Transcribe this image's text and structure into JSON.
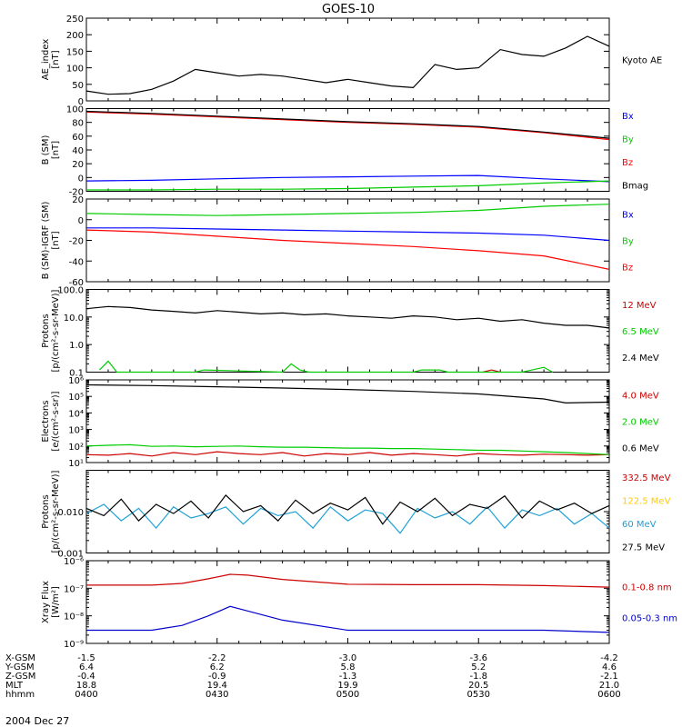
{
  "title": "GOES-10",
  "date_label": "2004 Dec 27",
  "chart_data": [
    {
      "type": "line",
      "ylabel": [
        "AE_index",
        "[nT]"
      ],
      "ylim": [
        0,
        250
      ],
      "yscale": "linear",
      "yticks": [
        0,
        50,
        100,
        150,
        200,
        250
      ],
      "ytick_labels": [
        "0",
        "50",
        "100",
        "150",
        "200",
        "250"
      ],
      "legend_position": "right",
      "series": [
        {
          "name": "Kyoto AE",
          "color": "#000000",
          "x_hhmm": [
            "0400",
            "0405",
            "0410",
            "0415",
            "0420",
            "0425",
            "0430",
            "0435",
            "0440",
            "0445",
            "0450",
            "0455",
            "0500",
            "0505",
            "0510",
            "0515",
            "0520",
            "0525",
            "0530",
            "0535",
            "0540",
            "0545",
            "0550",
            "0555",
            "0600"
          ],
          "values": [
            30,
            20,
            22,
            35,
            60,
            95,
            85,
            75,
            80,
            75,
            65,
            55,
            65,
            55,
            45,
            40,
            110,
            95,
            100,
            155,
            140,
            135,
            160,
            195,
            165
          ]
        }
      ]
    },
    {
      "type": "line",
      "ylabel": [
        "B (SM)",
        "[nT]"
      ],
      "ylim": [
        -20,
        100
      ],
      "yscale": "linear",
      "yticks": [
        -20,
        0,
        20,
        40,
        60,
        80,
        100
      ],
      "ytick_labels": [
        "-20",
        "0",
        "20",
        "40",
        "60",
        "80",
        "100"
      ],
      "legend_position": "right",
      "series": [
        {
          "name": "Bx",
          "color": "#0000ff",
          "x_hhmm": [
            "0400",
            "0415",
            "0430",
            "0445",
            "0500",
            "0515",
            "0530",
            "0545",
            "0600"
          ],
          "values": [
            -5,
            -4,
            -2,
            0,
            1,
            2,
            3,
            -2,
            -6
          ]
        },
        {
          "name": "By",
          "color": "#00cc00",
          "x_hhmm": [
            "0400",
            "0415",
            "0430",
            "0445",
            "0500",
            "0515",
            "0530",
            "0545",
            "0600"
          ],
          "values": [
            -18,
            -18,
            -17,
            -17,
            -16,
            -14,
            -12,
            -8,
            -5
          ]
        },
        {
          "name": "Bz",
          "color": "#ff0000",
          "x_hhmm": [
            "0400",
            "0415",
            "0430",
            "0445",
            "0500",
            "0515",
            "0530",
            "0545",
            "0600"
          ],
          "values": [
            95,
            92,
            88,
            84,
            80,
            77,
            73,
            65,
            55
          ]
        },
        {
          "name": "Bmag",
          "color": "#000000",
          "x_hhmm": [
            "0400",
            "0415",
            "0430",
            "0445",
            "0500",
            "0515",
            "0530",
            "0545",
            "0600"
          ],
          "values": [
            96,
            93,
            89,
            85,
            81,
            78,
            74,
            66,
            57
          ]
        }
      ]
    },
    {
      "type": "line",
      "ylabel": [
        "B (SM)-IGRF (SM)",
        "[nT]"
      ],
      "ylim": [
        -60,
        20
      ],
      "yscale": "linear",
      "yticks": [
        -60,
        -40,
        -20,
        0,
        20
      ],
      "ytick_labels": [
        "-60",
        "-40",
        "-20",
        "0",
        "20"
      ],
      "legend_position": "right",
      "series": [
        {
          "name": "Bx",
          "color": "#0000ff",
          "x_hhmm": [
            "0400",
            "0415",
            "0430",
            "0445",
            "0500",
            "0515",
            "0530",
            "0545",
            "0600"
          ],
          "values": [
            -8,
            -8,
            -9,
            -10,
            -11,
            -12,
            -13,
            -15,
            -20
          ]
        },
        {
          "name": "By",
          "color": "#00cc00",
          "x_hhmm": [
            "0400",
            "0415",
            "0430",
            "0445",
            "0500",
            "0515",
            "0530",
            "0545",
            "0600"
          ],
          "values": [
            6,
            5,
            4,
            5,
            6,
            7,
            9,
            13,
            15
          ]
        },
        {
          "name": "Bz",
          "color": "#ff0000",
          "x_hhmm": [
            "0400",
            "0415",
            "0430",
            "0445",
            "0500",
            "0515",
            "0530",
            "0545",
            "0600"
          ],
          "values": [
            -10,
            -12,
            -16,
            -20,
            -23,
            -26,
            -30,
            -35,
            -48
          ]
        }
      ]
    },
    {
      "type": "line",
      "ylabel": [
        "Protons",
        "[p/(cm²-s-sr-MeV)]"
      ],
      "ylim": [
        0.1,
        100
      ],
      "yscale": "log",
      "yticks": [
        0.1,
        1,
        10,
        100
      ],
      "ytick_labels": [
        "0.1",
        "1.0",
        "10.0",
        "100.0"
      ],
      "legend_position": "right",
      "series": [
        {
          "name": "12 MeV",
          "color": "#cc0000",
          "x_hhmm": [
            "0531",
            "0533",
            "0535"
          ],
          "values": [
            0.1,
            0.12,
            0.1
          ]
        },
        {
          "name": "6.5 MeV",
          "color": "#00cc00",
          "x_hhmm": [
            "0403",
            "0405",
            "0407",
            "0412",
            "0414",
            "0420",
            "0422",
            "0425",
            "0427",
            "0445",
            "0447",
            "0449",
            "0451",
            "0515",
            "0517",
            "0521",
            "0523",
            "0538",
            "0540",
            "0545",
            "0547"
          ],
          "values": [
            0.12,
            0.25,
            0.1,
            0.1,
            0.1,
            0.1,
            0.1,
            0.1,
            0.12,
            0.1,
            0.2,
            0.12,
            0.1,
            0.1,
            0.12,
            0.12,
            0.1,
            0.1,
            0.1,
            0.15,
            0.1
          ]
        },
        {
          "name": "2.4 MeV",
          "color": "#000000",
          "x_hhmm": [
            "0400",
            "0405",
            "0410",
            "0415",
            "0420",
            "0425",
            "0430",
            "0435",
            "0440",
            "0445",
            "0450",
            "0455",
            "0500",
            "0505",
            "0510",
            "0515",
            "0520",
            "0525",
            "0530",
            "0535",
            "0540",
            "0545",
            "0550",
            "0555",
            "0600"
          ],
          "values": [
            20,
            24,
            22,
            18,
            16,
            14,
            17,
            15,
            13,
            14,
            12,
            13,
            11,
            10,
            9,
            11,
            10,
            8,
            9,
            7,
            8,
            6,
            5,
            5,
            4
          ]
        }
      ]
    },
    {
      "type": "line",
      "ylabel": [
        "Electrons",
        "[e/(cm²-s-sr)]"
      ],
      "ylim": [
        10,
        1000000
      ],
      "yscale": "log",
      "yticks": [
        10,
        100,
        1000,
        10000,
        100000,
        1000000
      ],
      "ytick_labels": [
        "10¹",
        "10²",
        "10³",
        "10⁴",
        "10⁵",
        "10⁶"
      ],
      "legend_position": "right",
      "series": [
        {
          "name": "4.0 MeV",
          "color": "#cc0000",
          "x_hhmm": [
            "0400",
            "0405",
            "0410",
            "0415",
            "0420",
            "0425",
            "0430",
            "0435",
            "0440",
            "0445",
            "0450",
            "0455",
            "0500",
            "0505",
            "0510",
            "0515",
            "0520",
            "0525",
            "0530",
            "0535",
            "0540",
            "0545",
            "0550",
            "0555",
            "0600"
          ],
          "values": [
            30,
            28,
            35,
            25,
            40,
            30,
            45,
            35,
            30,
            40,
            25,
            35,
            30,
            40,
            28,
            35,
            30,
            25,
            35,
            30,
            28,
            32,
            30,
            28,
            30
          ]
        },
        {
          "name": "2.0 MeV",
          "color": "#00cc00",
          "x_hhmm": [
            "0400",
            "0405",
            "0410",
            "0415",
            "0420",
            "0425",
            "0430",
            "0435",
            "0440",
            "0445",
            "0450",
            "0455",
            "0500",
            "0505",
            "0510",
            "0515",
            "0520",
            "0525",
            "0530",
            "0535",
            "0540",
            "0545",
            "0550",
            "0555",
            "0600"
          ],
          "values": [
            100,
            110,
            120,
            95,
            100,
            90,
            95,
            100,
            90,
            85,
            85,
            80,
            75,
            75,
            70,
            70,
            65,
            60,
            55,
            55,
            50,
            45,
            40,
            35,
            30
          ]
        },
        {
          "name": "0.6 MeV",
          "color": "#000000",
          "x_hhmm": [
            "0400",
            "0415",
            "0430",
            "0445",
            "0500",
            "0515",
            "0530",
            "0545",
            "0550",
            "0600"
          ],
          "values": [
            500000,
            450000,
            380000,
            320000,
            260000,
            200000,
            140000,
            70000,
            40000,
            45000
          ]
        }
      ]
    },
    {
      "type": "line",
      "ylabel": [
        "Protons",
        "[p/(cm²-s-sr-MeV)]"
      ],
      "ylim": [
        0.001,
        0.1
      ],
      "yscale": "log",
      "yticks": [
        0.001,
        0.01
      ],
      "ytick_labels": [
        "0.001",
        "0.010"
      ],
      "legend_position": "right",
      "series": [
        {
          "name": "332.5 MeV",
          "color": "#cc0000",
          "x_hhmm": [],
          "values": []
        },
        {
          "name": "122.5 MeV",
          "color": "#ffcc00",
          "x_hhmm": [],
          "values": []
        },
        {
          "name": "60 MeV",
          "color": "#1ca0d6",
          "x_hhmm": [
            "0400",
            "0404",
            "0408",
            "0412",
            "0416",
            "0420",
            "0424",
            "0428",
            "0432",
            "0436",
            "0440",
            "0444",
            "0448",
            "0452",
            "0456",
            "0500",
            "0504",
            "0508",
            "0512",
            "0516",
            "0520",
            "0524",
            "0528",
            "0532",
            "0536",
            "0540",
            "0544",
            "0548",
            "0552",
            "0556",
            "0600"
          ],
          "values": [
            0.009,
            0.015,
            0.006,
            0.012,
            0.004,
            0.013,
            0.007,
            0.009,
            0.013,
            0.005,
            0.012,
            0.008,
            0.01,
            0.004,
            0.013,
            0.006,
            0.011,
            0.009,
            0.003,
            0.012,
            0.007,
            0.01,
            0.005,
            0.013,
            0.004,
            0.011,
            0.008,
            0.012,
            0.005,
            0.009,
            0.004
          ]
        },
        {
          "name": "27.5 MeV",
          "color": "#000000",
          "x_hhmm": [
            "0400",
            "0404",
            "0408",
            "0412",
            "0416",
            "0420",
            "0424",
            "0428",
            "0432",
            "0436",
            "0440",
            "0444",
            "0448",
            "0452",
            "0456",
            "0500",
            "0504",
            "0508",
            "0512",
            "0516",
            "0520",
            "0524",
            "0528",
            "0532",
            "0536",
            "0540",
            "0544",
            "0548",
            "0552",
            "0556",
            "0600"
          ],
          "values": [
            0.012,
            0.008,
            0.02,
            0.006,
            0.015,
            0.009,
            0.018,
            0.007,
            0.025,
            0.01,
            0.014,
            0.006,
            0.019,
            0.009,
            0.016,
            0.011,
            0.022,
            0.005,
            0.017,
            0.01,
            0.021,
            0.008,
            0.015,
            0.012,
            0.024,
            0.007,
            0.018,
            0.011,
            0.016,
            0.009,
            0.014
          ]
        }
      ]
    },
    {
      "type": "line",
      "ylabel": [
        "Xray Flux",
        "[W/m²]"
      ],
      "ylim": [
        1e-09,
        1e-06
      ],
      "yscale": "log",
      "yticks": [
        1e-09,
        1e-08,
        1e-07,
        1e-06
      ],
      "ytick_labels": [
        "10⁻⁹",
        "10⁻⁸",
        "10⁻⁷",
        "10⁻⁶"
      ],
      "legend_position": "right",
      "series": [
        {
          "name": "0.1-0.8 nm",
          "color": "#cc0000",
          "x_hhmm": [
            "0400",
            "0415",
            "0422",
            "0428",
            "0433",
            "0437",
            "0445",
            "0500",
            "0515",
            "0530",
            "0545",
            "0600"
          ],
          "values": [
            1.3e-07,
            1.3e-07,
            1.5e-07,
            2.2e-07,
            3.2e-07,
            3e-07,
            2.1e-07,
            1.4e-07,
            1.35e-07,
            1.35e-07,
            1.25e-07,
            1.1e-07
          ]
        },
        {
          "name": "0.05-0.3 nm",
          "color": "#0000cc",
          "x_hhmm": [
            "0400",
            "0415",
            "0422",
            "0428",
            "0433",
            "0437",
            "0445",
            "0500",
            "0515",
            "0530",
            "0545",
            "0600"
          ],
          "values": [
            3e-09,
            3e-09,
            4.5e-09,
            1e-08,
            2.2e-08,
            1.5e-08,
            7e-09,
            3e-09,
            3e-09,
            3e-09,
            3e-09,
            2.5e-09
          ]
        }
      ]
    }
  ],
  "x_axis": {
    "row_labels": [
      "X-GSM",
      "Y-GSM",
      "Z-GSM",
      "MLT",
      "hhmm"
    ],
    "columns": [
      {
        "x_hhmm": "0400",
        "values": [
          "-1.5",
          "6.4",
          "-0.4",
          "18.8",
          "0400"
        ]
      },
      {
        "x_hhmm": "0430",
        "values": [
          "-2.2",
          "6.2",
          "-0.9",
          "19.4",
          "0430"
        ]
      },
      {
        "x_hhmm": "0500",
        "values": [
          "-3.0",
          "5.8",
          "-1.3",
          "19.9",
          "0500"
        ]
      },
      {
        "x_hhmm": "0530",
        "values": [
          "-3.6",
          "5.2",
          "-1.8",
          "20.5",
          "0530"
        ]
      },
      {
        "x_hhmm": "0600",
        "values": [
          "-4.2",
          "4.6",
          "-2.1",
          "21.0",
          "0600"
        ]
      }
    ]
  }
}
